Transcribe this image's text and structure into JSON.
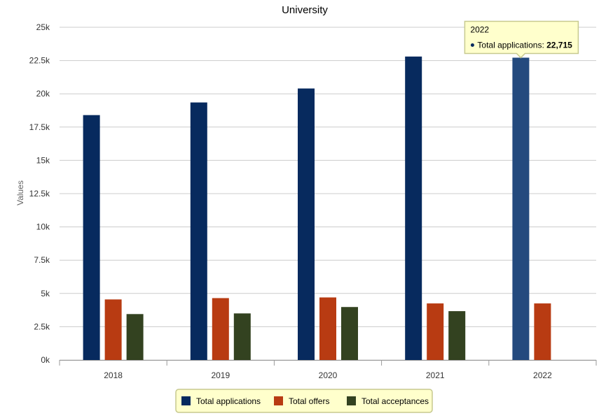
{
  "chart_data": {
    "type": "bar",
    "title": "University",
    "xlabel": "",
    "ylabel": "Values",
    "categories": [
      "2018",
      "2019",
      "2020",
      "2021",
      "2022"
    ],
    "series": [
      {
        "name": "Total applications",
        "color": "#072a5e",
        "values": [
          18400,
          19350,
          20400,
          22800,
          22715
        ]
      },
      {
        "name": "Total offers",
        "color": "#b83b12",
        "values": [
          4550,
          4650,
          4700,
          4250,
          4250
        ]
      },
      {
        "name": "Total acceptances",
        "color": "#334220",
        "values": [
          3450,
          3500,
          3980,
          3670,
          null
        ]
      }
    ],
    "ylim": [
      0,
      25000
    ],
    "yticks": [
      0,
      2500,
      5000,
      7500,
      10000,
      12500,
      15000,
      17500,
      20000,
      22500,
      25000
    ],
    "ytick_labels": [
      "0k",
      "2.5k",
      "5k",
      "7.5k",
      "10k",
      "12.5k",
      "15k",
      "17.5k",
      "20k",
      "22.5k",
      "25k"
    ],
    "grid": true,
    "legend_position": "bottom-center",
    "tooltip": {
      "category": "2022",
      "series_label": "Total applications: ",
      "value_text": "22,715",
      "highlight_color": "#244a7e"
    },
    "colors": {
      "tooltip_bg": "#ffffcc",
      "tooltip_border": "#c7c98f",
      "legend_bg": "#ffffcc",
      "legend_border": "#c7c98f",
      "grid": "#cccccc"
    }
  }
}
